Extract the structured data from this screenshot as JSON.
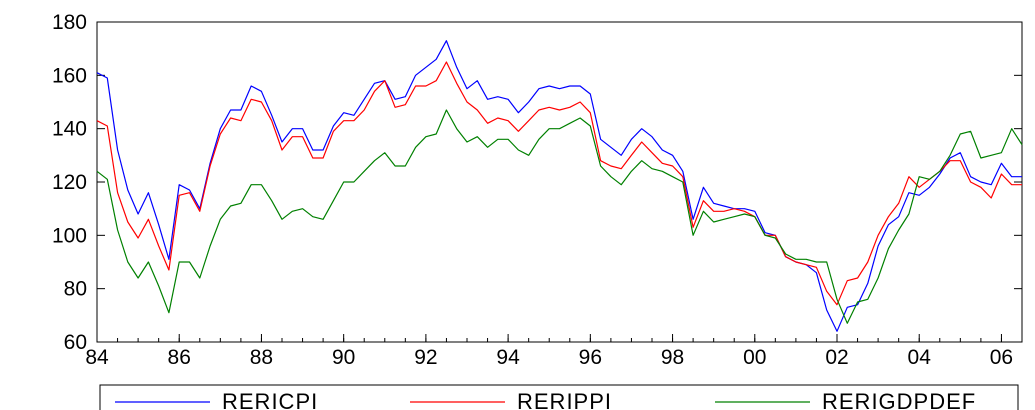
{
  "chart_data": {
    "type": "line",
    "title": "",
    "xlabel": "",
    "ylabel": "",
    "xlim": [
      1984.0,
      2006.5
    ],
    "ylim": [
      60,
      180
    ],
    "xticks": [
      {
        "label": "84",
        "year": 1984
      },
      {
        "label": "86",
        "year": 1986
      },
      {
        "label": "88",
        "year": 1988
      },
      {
        "label": "90",
        "year": 1990
      },
      {
        "label": "92",
        "year": 1992
      },
      {
        "label": "94",
        "year": 1994
      },
      {
        "label": "96",
        "year": 1996
      },
      {
        "label": "98",
        "year": 1998
      },
      {
        "label": "00",
        "year": 2000
      },
      {
        "label": "02",
        "year": 2002
      },
      {
        "label": "04",
        "year": 2004
      },
      {
        "label": "06",
        "year": 2006
      }
    ],
    "yticks": [
      "60",
      "80",
      "100",
      "120",
      "140",
      "160",
      "180"
    ],
    "grid": false,
    "legend_position": "bottom",
    "x": [
      1984.0,
      1984.25,
      1984.5,
      1984.75,
      1985.0,
      1985.25,
      1985.5,
      1985.75,
      1986.0,
      1986.25,
      1986.5,
      1986.75,
      1987.0,
      1987.25,
      1987.5,
      1987.75,
      1988.0,
      1988.25,
      1988.5,
      1988.75,
      1989.0,
      1989.25,
      1989.5,
      1989.75,
      1990.0,
      1990.25,
      1990.5,
      1990.75,
      1991.0,
      1991.25,
      1991.5,
      1991.75,
      1992.0,
      1992.25,
      1992.5,
      1992.75,
      1993.0,
      1993.25,
      1993.5,
      1993.75,
      1994.0,
      1994.25,
      1994.5,
      1994.75,
      1995.0,
      1995.25,
      1995.5,
      1995.75,
      1996.0,
      1996.25,
      1996.5,
      1996.75,
      1997.0,
      1997.25,
      1997.5,
      1997.75,
      1998.0,
      1998.25,
      1998.5,
      1998.75,
      1999.0,
      1999.25,
      1999.5,
      1999.75,
      2000.0,
      2000.25,
      2000.5,
      2000.75,
      2001.0,
      2001.25,
      2001.5,
      2001.75,
      2002.0,
      2002.25,
      2002.5,
      2002.75,
      2003.0,
      2003.25,
      2003.5,
      2003.75,
      2004.0,
      2004.25,
      2004.5,
      2004.75,
      2005.0,
      2005.25,
      2005.5,
      2005.75,
      2006.0,
      2006.25,
      2006.5
    ],
    "series": [
      {
        "name": "RERICPI",
        "color": "#0000ff",
        "values": [
          161,
          159,
          132,
          117,
          108,
          116,
          104,
          91,
          119,
          117,
          110,
          127,
          140,
          147,
          147,
          156,
          154,
          145,
          135,
          140,
          140,
          132,
          132,
          141,
          146,
          145,
          151,
          157,
          158,
          151,
          152,
          160,
          163,
          166,
          173,
          163,
          155,
          158,
          151,
          152,
          151,
          146,
          150,
          155,
          156,
          155,
          156,
          156,
          153,
          136,
          133,
          130,
          136,
          140,
          137,
          132,
          130,
          124,
          106,
          118,
          112,
          111,
          110,
          110,
          109,
          101,
          100,
          92,
          90,
          89,
          86,
          72,
          64,
          73,
          74,
          82,
          96,
          104,
          107,
          116,
          115,
          118,
          123,
          129,
          131,
          122,
          120,
          119,
          127,
          122,
          122
        ]
      },
      {
        "name": "RERIPPI",
        "color": "#ff0000",
        "values": [
          143,
          141,
          116,
          105,
          99,
          106,
          96,
          87,
          115,
          116,
          109,
          126,
          138,
          144,
          143,
          151,
          150,
          143,
          132,
          137,
          137,
          129,
          129,
          139,
          143,
          143,
          147,
          154,
          158,
          148,
          149,
          156,
          156,
          158,
          165,
          157,
          150,
          147,
          142,
          144,
          143,
          139,
          143,
          147,
          148,
          147,
          148,
          150,
          146,
          128,
          126,
          125,
          130,
          135,
          131,
          127,
          126,
          122,
          103,
          113,
          109,
          109,
          110,
          109,
          107,
          100,
          100,
          92,
          90,
          89,
          88,
          79,
          74,
          83,
          84,
          90,
          100,
          107,
          112,
          122,
          118,
          121,
          124,
          128,
          128,
          120,
          118,
          114,
          123,
          119,
          119
        ]
      },
      {
        "name": "RERIGDPDEF",
        "color": "#008000",
        "values": [
          124,
          121,
          102,
          90,
          84,
          90,
          81,
          71,
          90,
          90,
          84,
          96,
          106,
          111,
          112,
          119,
          119,
          113,
          106,
          109,
          110,
          107,
          106,
          113,
          120,
          120,
          124,
          128,
          131,
          126,
          126,
          133,
          137,
          138,
          147,
          140,
          135,
          137,
          133,
          136,
          136,
          132,
          130,
          136,
          140,
          140,
          142,
          144,
          141,
          126,
          122,
          119,
          124,
          128,
          125,
          124,
          122,
          120,
          100,
          109,
          105,
          106,
          107,
          108,
          107,
          100,
          99,
          93,
          91,
          91,
          90,
          90,
          76,
          67,
          75,
          76,
          84,
          95,
          102,
          108,
          122,
          121,
          124,
          130,
          138,
          139,
          129,
          130,
          131,
          140,
          134
        ]
      }
    ]
  }
}
